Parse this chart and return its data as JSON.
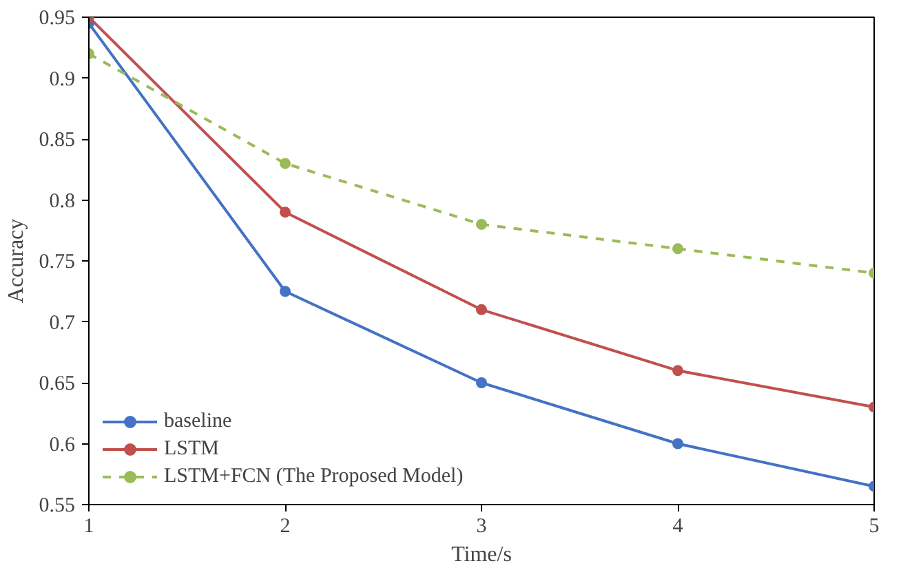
{
  "chart_data": {
    "type": "line",
    "xlabel": "Time/s",
    "ylabel": "Accuracy",
    "x": [
      1,
      2,
      3,
      4,
      5
    ],
    "xlim": [
      1,
      5
    ],
    "xticks": [
      1,
      2,
      3,
      4,
      5
    ],
    "ylim": [
      0.55,
      0.95
    ],
    "yticks": [
      0.55,
      0.6,
      0.65,
      0.7,
      0.75,
      0.8,
      0.85,
      0.9,
      0.95
    ],
    "grid": false,
    "legend": "bottom left",
    "marker": "circle",
    "series": [
      {
        "name": "baseline",
        "color": "#4472c4",
        "values": [
          0.945,
          0.725,
          0.65,
          0.6,
          0.565
        ],
        "line_style": "solid"
      },
      {
        "name": "LSTM",
        "color": "#c0504d",
        "values": [
          0.95,
          0.79,
          0.71,
          0.66,
          0.63
        ],
        "line_style": "solid"
      },
      {
        "name": "LSTM+FCN (The Proposed Model)",
        "color": "#9bbb59",
        "values": [
          0.92,
          0.83,
          0.78,
          0.76,
          0.74
        ],
        "line_style": "dashed"
      }
    ]
  }
}
